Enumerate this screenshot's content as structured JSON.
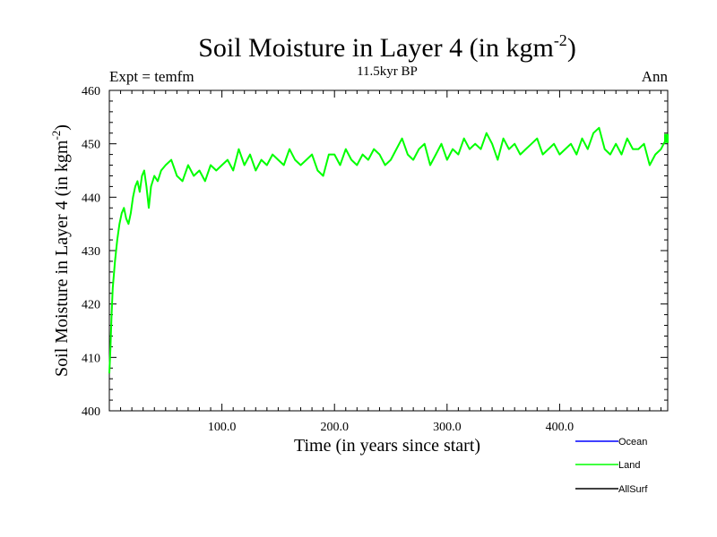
{
  "chart_data": {
    "type": "line",
    "title": "Soil Moisture in Layer 4 (in kgm",
    "title_sup": "-2",
    "title_close": ")",
    "left_label": "Expt = temfm",
    "center_label": "11.5kyr BP",
    "right_label": "Ann",
    "xlabel": "Time (in years since start)",
    "ylabel": "Soil Moisture in Layer 4 (in kgm",
    "ylabel_sup": "-2",
    "ylabel_close": ")",
    "xlim": [
      0,
      496
    ],
    "ylim": [
      400,
      460
    ],
    "x_ticks": [
      100,
      200,
      300,
      400
    ],
    "x_tick_labels": [
      "100.0",
      "200.0",
      "300.0",
      "400.0"
    ],
    "y_ticks": [
      400,
      410,
      420,
      430,
      440,
      450,
      460
    ],
    "y_tick_labels": [
      "400",
      "410",
      "420",
      "430",
      "440",
      "450",
      "460"
    ],
    "x_minor_step": 10,
    "y_minor_step": 2,
    "series": [
      {
        "name": "Ocean",
        "color": "#0000ff",
        "values": []
      },
      {
        "name": "Land",
        "color": "#00ff00",
        "x": [
          0,
          1,
          2,
          3,
          5,
          7,
          9,
          11,
          13,
          15,
          17,
          19,
          21,
          23,
          25,
          27,
          29,
          31,
          33,
          35,
          37,
          40,
          43,
          46,
          50,
          55,
          60,
          65,
          70,
          75,
          80,
          85,
          90,
          95,
          100,
          105,
          110,
          115,
          120,
          125,
          130,
          135,
          140,
          145,
          150,
          155,
          160,
          165,
          170,
          175,
          180,
          185,
          190,
          195,
          200,
          205,
          210,
          215,
          220,
          225,
          230,
          235,
          240,
          245,
          250,
          255,
          260,
          265,
          270,
          275,
          280,
          285,
          290,
          295,
          300,
          305,
          310,
          315,
          320,
          325,
          330,
          335,
          340,
          345,
          350,
          355,
          360,
          365,
          370,
          375,
          380,
          385,
          390,
          395,
          400,
          405,
          410,
          415,
          420,
          425,
          430,
          435,
          440,
          445,
          450,
          455,
          460,
          465,
          470,
          475,
          480,
          485,
          490,
          495
        ],
        "values": [
          407,
          412,
          418,
          423,
          428,
          432,
          435,
          437,
          438,
          436,
          435,
          437,
          440,
          442,
          443,
          441,
          444,
          445,
          442,
          438,
          442,
          444,
          443,
          445,
          446,
          447,
          444,
          443,
          446,
          444,
          445,
          443,
          446,
          445,
          446,
          447,
          445,
          449,
          446,
          448,
          445,
          447,
          446,
          448,
          447,
          446,
          449,
          447,
          446,
          447,
          448,
          445,
          444,
          448,
          448,
          446,
          449,
          447,
          446,
          448,
          447,
          449,
          448,
          446,
          447,
          449,
          451,
          448,
          447,
          449,
          450,
          446,
          448,
          450,
          447,
          449,
          448,
          451,
          449,
          450,
          449,
          452,
          450,
          447,
          451,
          449,
          450,
          448,
          449,
          450,
          451,
          448,
          449,
          450,
          448,
          449,
          450,
          448,
          451,
          449,
          452,
          453,
          449,
          448,
          450,
          448,
          451,
          449,
          449,
          450,
          446,
          448,
          449,
          451
        ]
      },
      {
        "name": "AllSurf",
        "color": "#000000",
        "values": []
      }
    ],
    "legend_placement": "bottom-right"
  }
}
